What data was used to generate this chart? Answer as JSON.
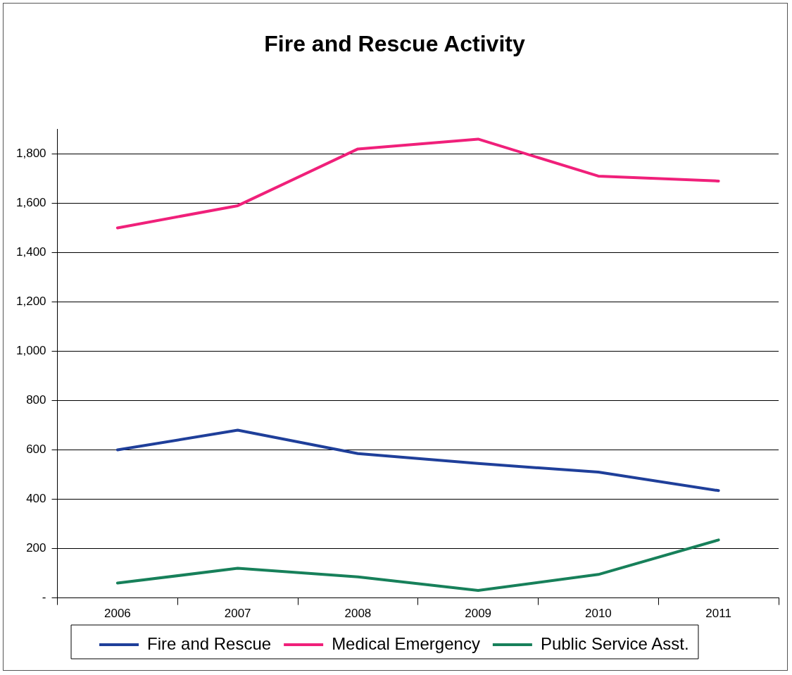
{
  "chart_data": {
    "type": "line",
    "title": "Fire and Rescue Activity",
    "categories": [
      "2006",
      "2007",
      "2008",
      "2009",
      "2010",
      "2011"
    ],
    "series": [
      {
        "name": "Fire and Rescue",
        "color": "#1f3f9a",
        "values": [
          600,
          680,
          585,
          545,
          510,
          435
        ]
      },
      {
        "name": "Medical Emergency",
        "color": "#f0207a",
        "values": [
          1500,
          1590,
          1820,
          1860,
          1710,
          1690
        ]
      },
      {
        "name": "Public Service Asst.",
        "color": "#17805a",
        "values": [
          60,
          120,
          85,
          30,
          95,
          235
        ]
      }
    ],
    "ylim": [
      0,
      1900
    ],
    "yticks": [
      {
        "value": 0,
        "label": "-"
      },
      {
        "value": 200,
        "label": "200"
      },
      {
        "value": 400,
        "label": "400"
      },
      {
        "value": 600,
        "label": "600"
      },
      {
        "value": 800,
        "label": "800"
      },
      {
        "value": 1000,
        "label": "1,000"
      },
      {
        "value": 1200,
        "label": "1,200"
      },
      {
        "value": 1400,
        "label": "1,400"
      },
      {
        "value": 1600,
        "label": "1,600"
      },
      {
        "value": 1800,
        "label": "1,800"
      }
    ],
    "grid": "y",
    "legend": "bottom",
    "marker": "none",
    "line_style": "solid"
  }
}
